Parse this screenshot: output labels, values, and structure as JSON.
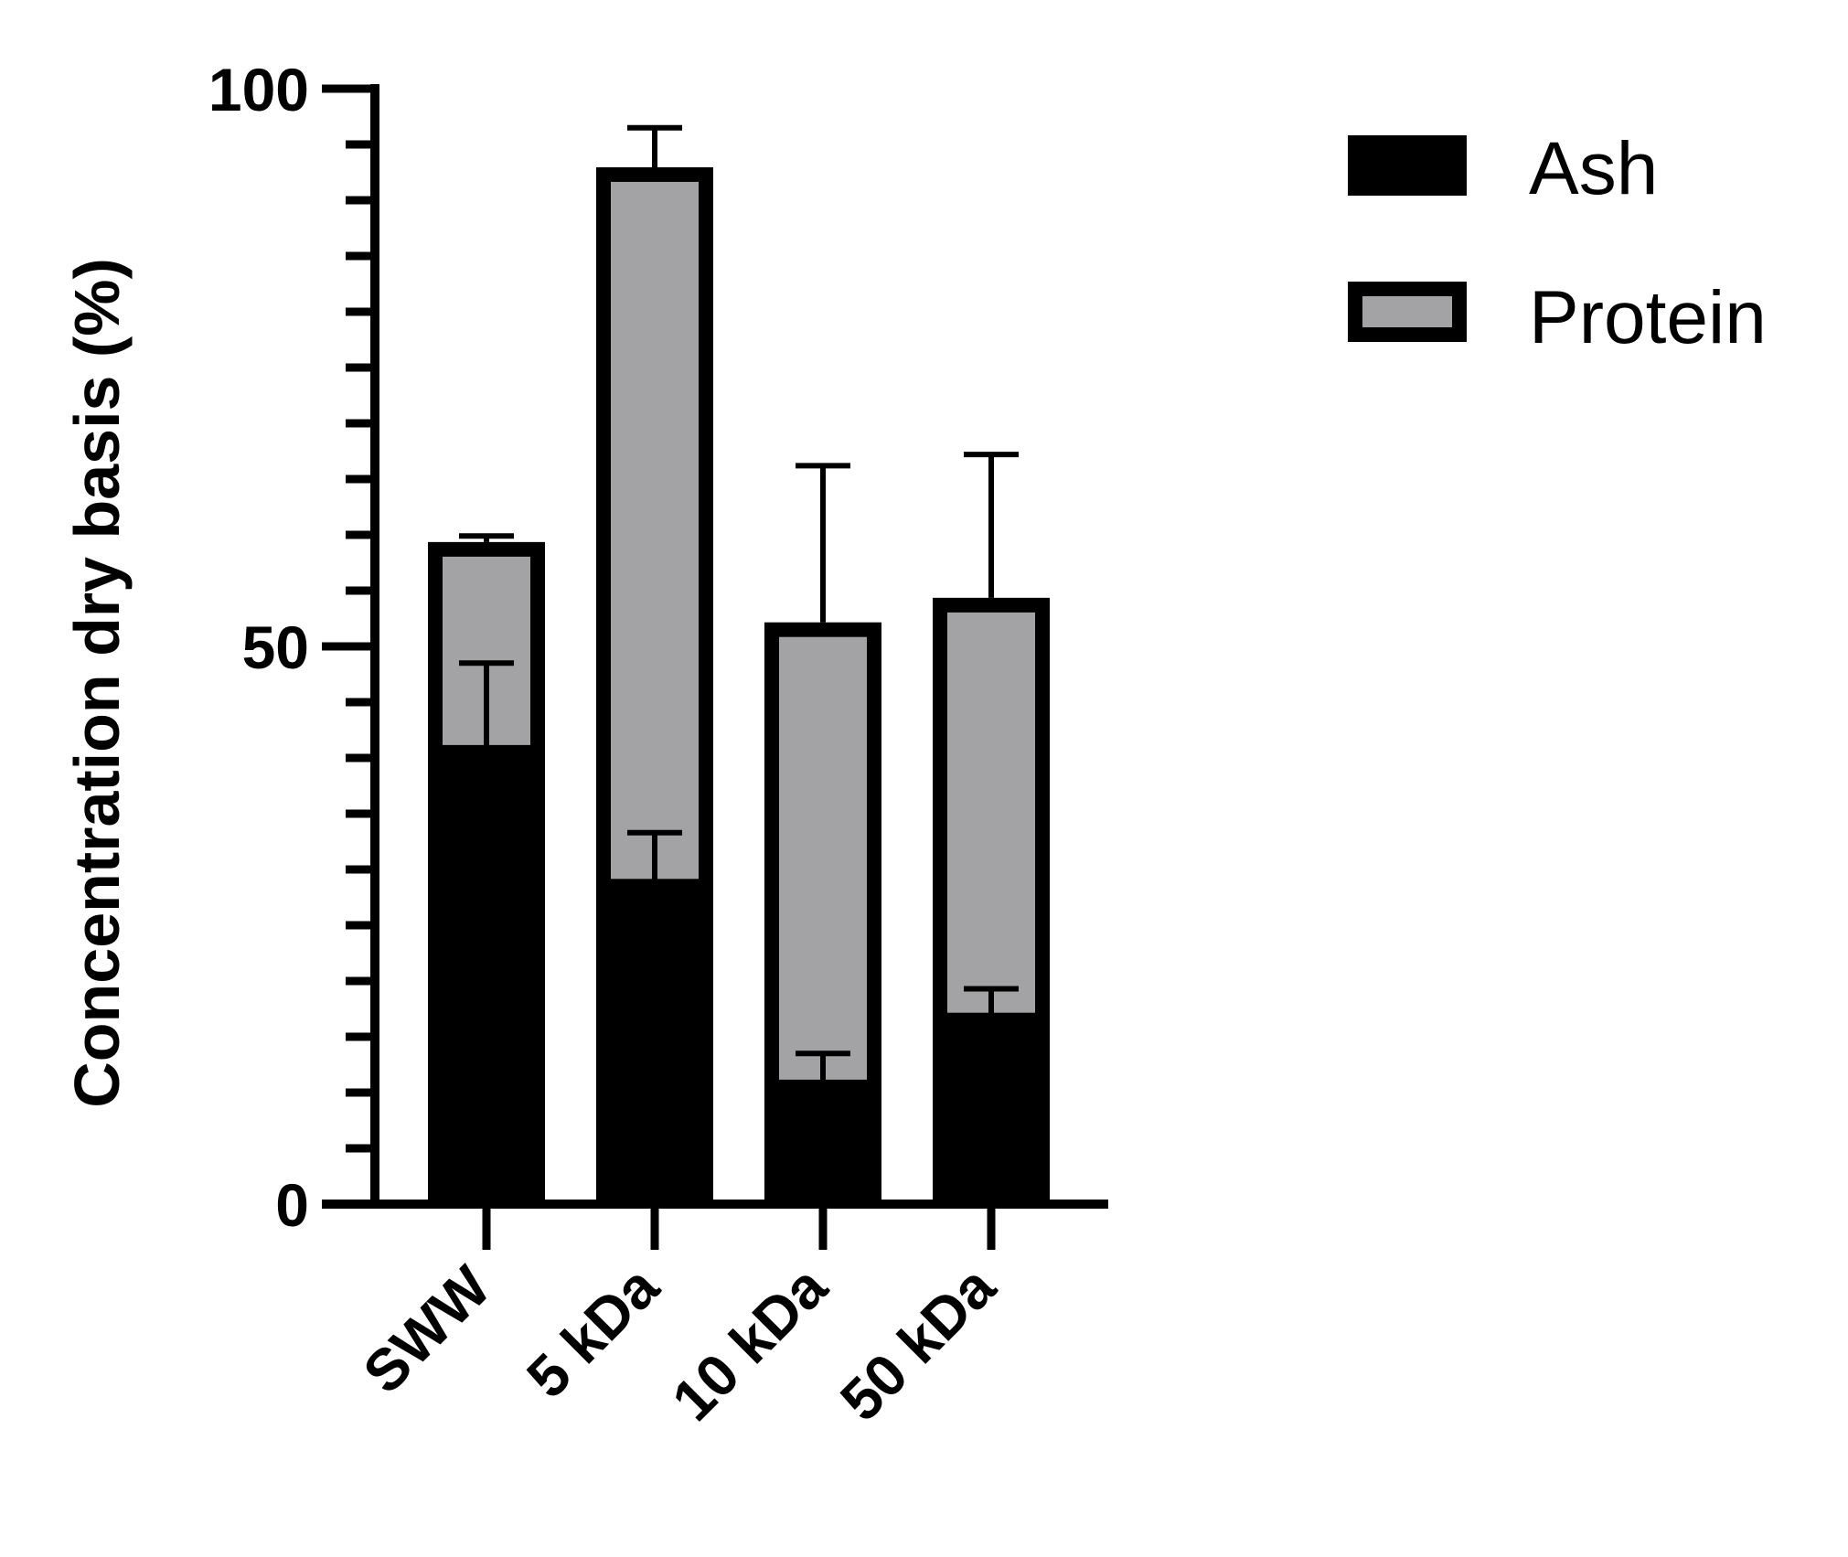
{
  "chart_data": {
    "type": "bar",
    "stacked": true,
    "categories": [
      "SWW",
      "5 kDa",
      "10 kDa",
      "50 kDa"
    ],
    "series": [
      {
        "name": "Ash",
        "color": "#000000",
        "values": [
          40.5,
          28.5,
          10.5,
          16.5
        ],
        "error": [
          8.0,
          4.8,
          3.0,
          2.8
        ]
      },
      {
        "name": "Protein",
        "color": "#a3a3a6",
        "values": [
          18.2,
          63.8,
          41.0,
          37.2
        ],
        "error": [
          1.2,
          4.2,
          14.7,
          13.5
        ]
      }
    ],
    "xlabel": "",
    "ylabel": "Concentration dry basis (%)",
    "ylim": [
      0,
      100
    ],
    "yticks": [
      0,
      50,
      100
    ],
    "legend": "top-right",
    "grid": false
  }
}
